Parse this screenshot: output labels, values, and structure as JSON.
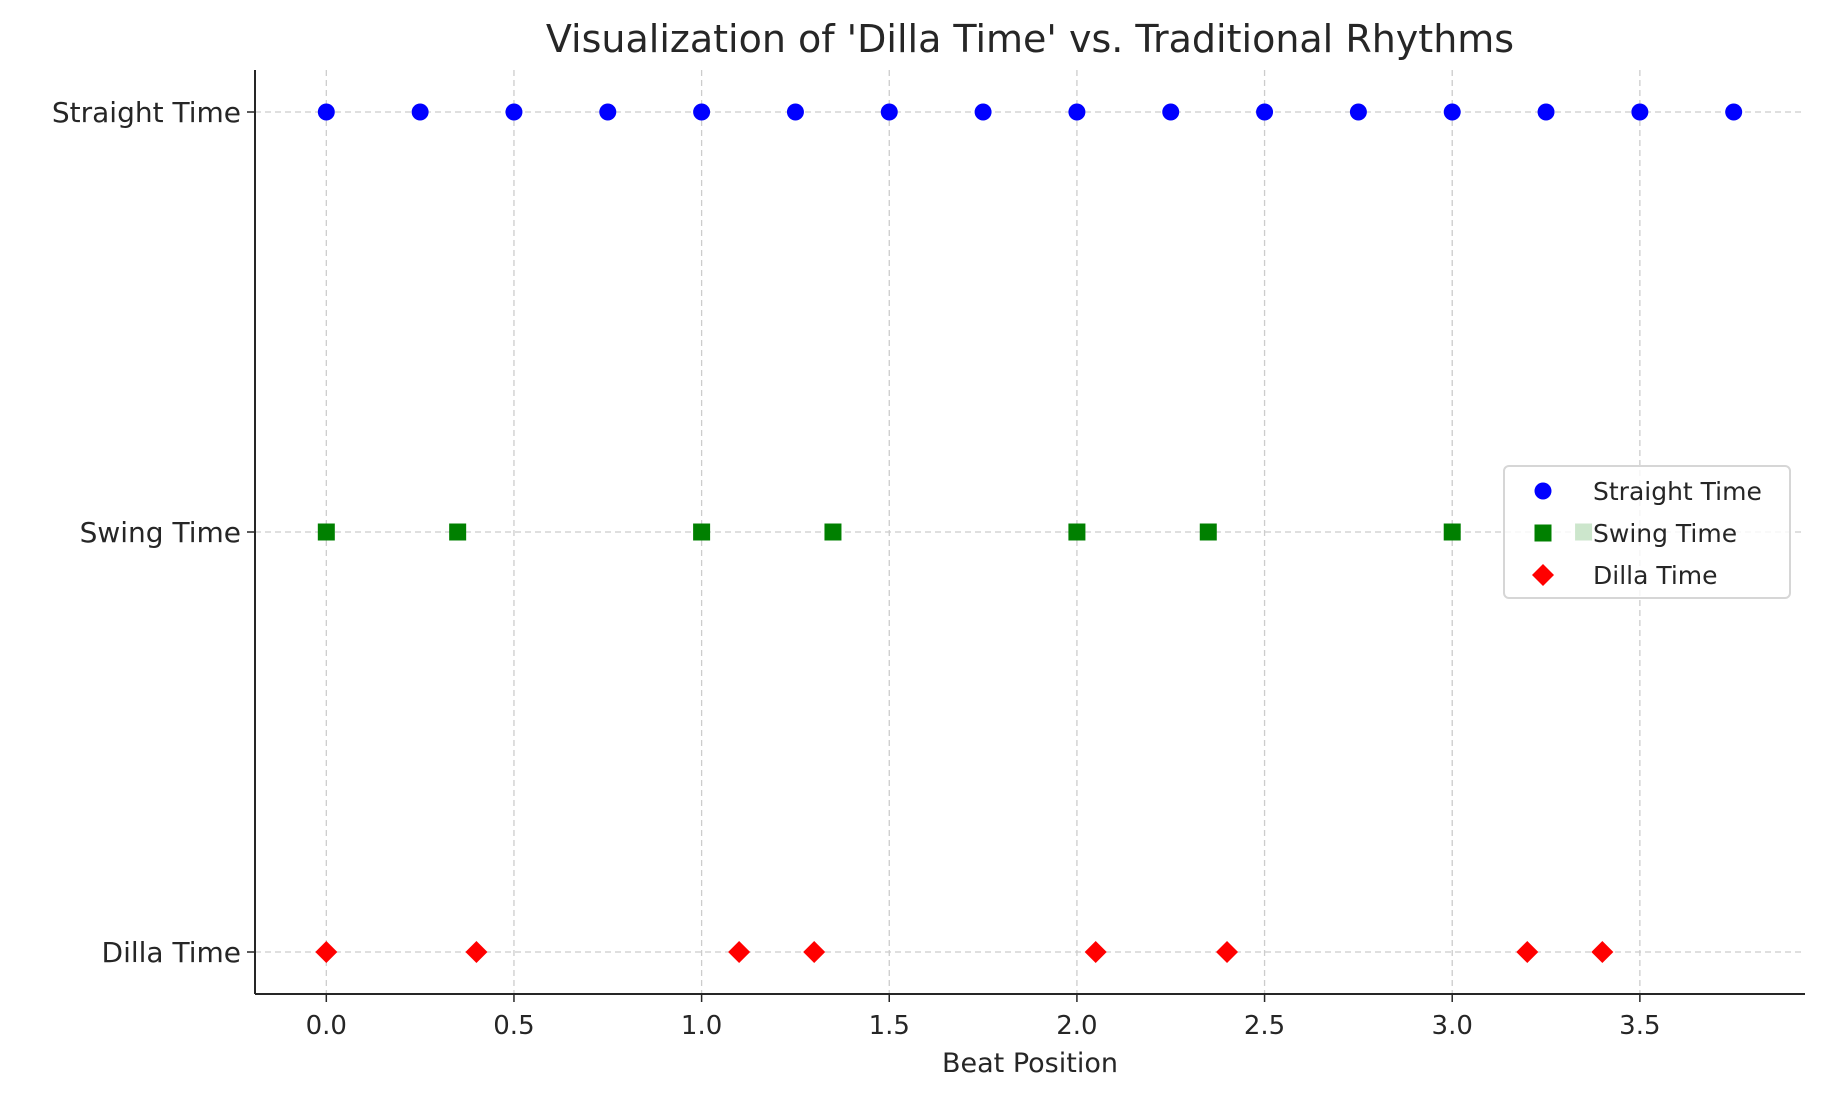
{
  "chart_data": {
    "type": "scatter",
    "title": "Visualization of 'Dilla Time' vs. Traditional Rhythms",
    "xlabel": "Beat Position",
    "ylabel": "",
    "xlim": [
      -0.19,
      3.94
    ],
    "x_ticks": [
      0.0,
      0.5,
      1.0,
      1.5,
      2.0,
      2.5,
      3.0,
      3.5
    ],
    "x_tick_labels": [
      "0.0",
      "0.5",
      "1.0",
      "1.5",
      "2.0",
      "2.5",
      "3.0",
      "3.5"
    ],
    "y_categories": [
      "Dilla Time",
      "Swing Time",
      "Straight Time"
    ],
    "grid": true,
    "legend_placement": "center-right",
    "series": [
      {
        "name": "Straight Time",
        "category": "Straight Time",
        "marker": "circle",
        "color": "#0000ff",
        "x": [
          0,
          0.25,
          0.5,
          0.75,
          1.0,
          1.25,
          1.5,
          1.75,
          2.0,
          2.25,
          2.5,
          2.75,
          3.0,
          3.25,
          3.5,
          3.75
        ]
      },
      {
        "name": "Swing Time",
        "category": "Swing Time",
        "marker": "square",
        "color": "#008000",
        "x": [
          0,
          0.35,
          1.0,
          1.35,
          2.0,
          2.35,
          3.0,
          3.35
        ]
      },
      {
        "name": "Dilla Time",
        "category": "Dilla Time",
        "marker": "diamond",
        "color": "#ff0000",
        "x": [
          0,
          0.4,
          1.1,
          1.3,
          2.05,
          2.4,
          3.2,
          3.4
        ]
      }
    ]
  }
}
